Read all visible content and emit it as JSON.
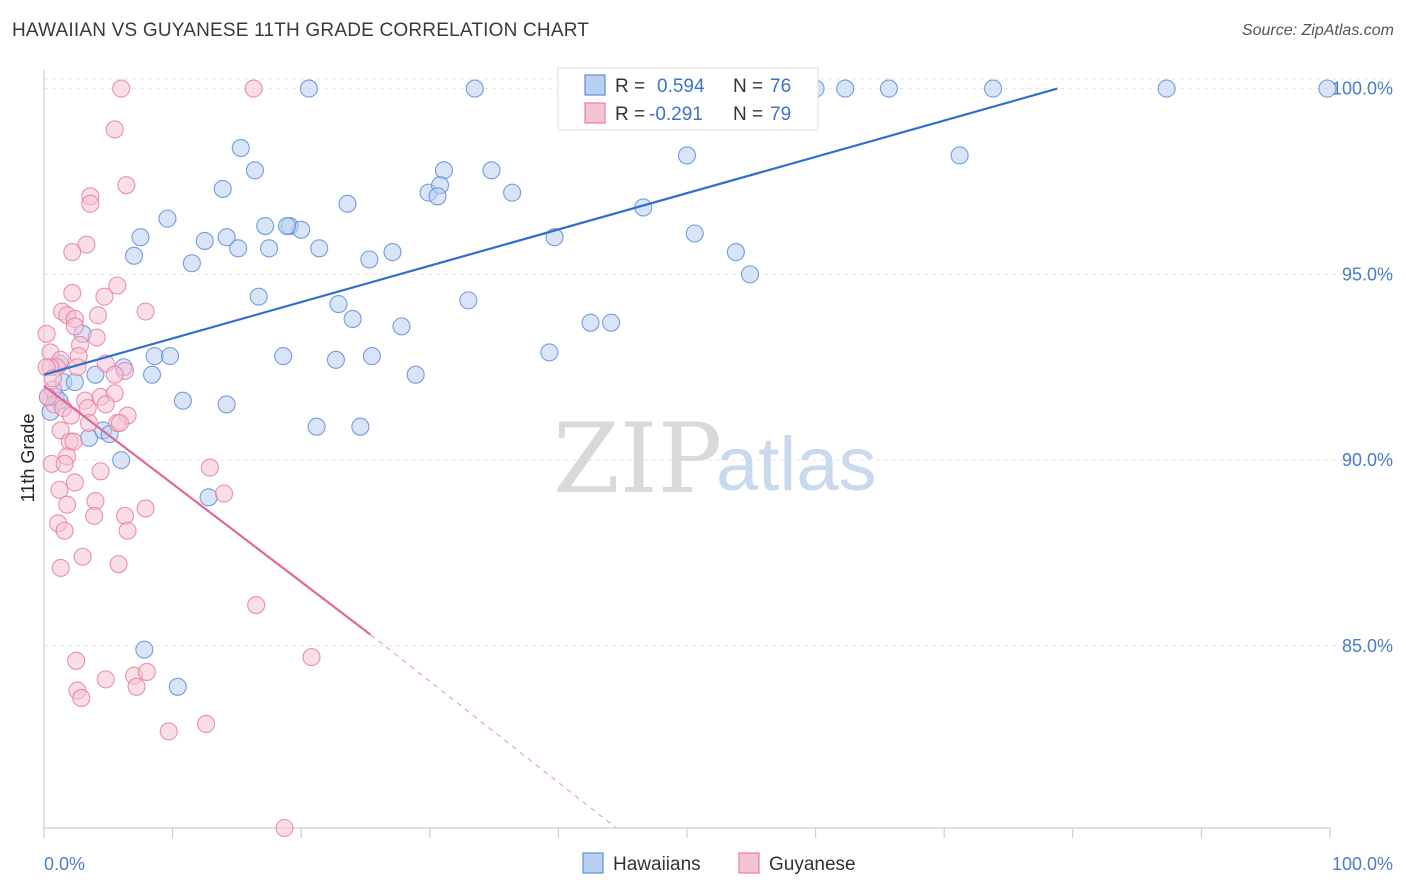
{
  "title": "HAWAIIAN VS GUYANESE 11TH GRADE CORRELATION CHART",
  "source": "Source: ZipAtlas.com",
  "watermark": {
    "zip": "ZIP",
    "atlas": "atlas"
  },
  "legend_stats": [
    {
      "r_label": "R =",
      "r_value": "0.594",
      "n_label": "N =",
      "n_value": "76",
      "color": "#5b8fd9"
    },
    {
      "r_label": "R =",
      "r_value": "-0.291",
      "n_label": "N =",
      "n_value": "79",
      "color": "#e87fa1"
    }
  ],
  "chart_data": {
    "type": "scatter",
    "title": "HAWAIIAN VS GUYANESE 11TH GRADE CORRELATION CHART",
    "xlabel": "",
    "ylabel": "11th Grade",
    "xlim": [
      0,
      100
    ],
    "ylim": [
      80.1,
      100.5
    ],
    "x_tick_labels": [
      "0.0%",
      "100.0%"
    ],
    "y_ticks": [
      {
        "value": 85,
        "label": "85.0%"
      },
      {
        "value": 90,
        "label": "90.0%"
      },
      {
        "value": 95,
        "label": "95.0%"
      },
      {
        "value": 100,
        "label": "100.0%"
      }
    ],
    "grid": true,
    "legend_position": "bottom",
    "series": [
      {
        "name": "Hawaiians",
        "color": "#5b8fd9",
        "fill": "#b9d0f0",
        "trend": {
          "x": [
            0,
            78.8
          ],
          "y": [
            92.3,
            100.0
          ],
          "dashed_extension": false
        },
        "points": [
          [
            20.6,
            100
          ],
          [
            33.5,
            100
          ],
          [
            60.0,
            100
          ],
          [
            62.3,
            100
          ],
          [
            65.7,
            100
          ],
          [
            73.8,
            100
          ],
          [
            87.3,
            100
          ],
          [
            99.8,
            100
          ],
          [
            15.3,
            98.4
          ],
          [
            16.4,
            97.8
          ],
          [
            31.1,
            97.8
          ],
          [
            34.8,
            97.8
          ],
          [
            50.0,
            98.2
          ],
          [
            71.2,
            98.2
          ],
          [
            13.9,
            97.3
          ],
          [
            23.6,
            96.9
          ],
          [
            29.9,
            97.2
          ],
          [
            30.8,
            97.4
          ],
          [
            30.6,
            97.1
          ],
          [
            36.4,
            97.2
          ],
          [
            9.6,
            96.5
          ],
          [
            17.2,
            96.3
          ],
          [
            19.1,
            96.3
          ],
          [
            20.0,
            96.2
          ],
          [
            18.9,
            96.3
          ],
          [
            46.6,
            96.8
          ],
          [
            50.6,
            96.1
          ],
          [
            7.5,
            96.0
          ],
          [
            14.2,
            96.0
          ],
          [
            12.5,
            95.9
          ],
          [
            15.1,
            95.7
          ],
          [
            17.5,
            95.7
          ],
          [
            21.4,
            95.7
          ],
          [
            27.1,
            95.6
          ],
          [
            39.7,
            96.0
          ],
          [
            53.8,
            95.6
          ],
          [
            7.0,
            95.5
          ],
          [
            11.5,
            95.3
          ],
          [
            25.3,
            95.4
          ],
          [
            54.9,
            95.0
          ],
          [
            16.7,
            94.4
          ],
          [
            22.9,
            94.2
          ],
          [
            33.0,
            94.3
          ],
          [
            24.0,
            93.8
          ],
          [
            27.8,
            93.6
          ],
          [
            42.5,
            93.7
          ],
          [
            44.1,
            93.7
          ],
          [
            3.0,
            93.4
          ],
          [
            8.6,
            92.8
          ],
          [
            9.8,
            92.8
          ],
          [
            18.6,
            92.8
          ],
          [
            22.7,
            92.7
          ],
          [
            25.5,
            92.8
          ],
          [
            39.3,
            92.9
          ],
          [
            28.9,
            92.3
          ],
          [
            1.2,
            92.6
          ],
          [
            4.0,
            92.3
          ],
          [
            6.2,
            92.5
          ],
          [
            8.4,
            92.3
          ],
          [
            1.5,
            92.1
          ],
          [
            2.4,
            92.1
          ],
          [
            0.3,
            91.7
          ],
          [
            0.9,
            91.7
          ],
          [
            1.2,
            91.6
          ],
          [
            10.8,
            91.6
          ],
          [
            14.2,
            91.5
          ],
          [
            21.2,
            90.9
          ],
          [
            24.6,
            90.9
          ],
          [
            3.5,
            90.6
          ],
          [
            4.6,
            90.8
          ],
          [
            5.1,
            90.7
          ],
          [
            6.0,
            90.0
          ],
          [
            12.8,
            89.0
          ],
          [
            7.8,
            84.9
          ],
          [
            10.4,
            83.9
          ],
          [
            0.5,
            91.3
          ]
        ]
      },
      {
        "name": "Guyanese",
        "color": "#e87fa1",
        "fill": "#f6c3d4",
        "trend": {
          "x": [
            0,
            25.4
          ],
          "y": [
            92.0,
            85.3
          ],
          "dashed_extension": true,
          "dashed_to": [
            44.5,
            80.1
          ]
        },
        "points": [
          [
            6.0,
            100
          ],
          [
            16.3,
            100
          ],
          [
            5.5,
            98.9
          ],
          [
            6.4,
            97.4
          ],
          [
            3.6,
            97.1
          ],
          [
            3.6,
            96.9
          ],
          [
            3.3,
            95.8
          ],
          [
            2.2,
            95.6
          ],
          [
            5.7,
            94.7
          ],
          [
            4.7,
            94.4
          ],
          [
            2.2,
            94.5
          ],
          [
            7.9,
            94.0
          ],
          [
            1.4,
            94.0
          ],
          [
            1.8,
            93.9
          ],
          [
            2.4,
            93.8
          ],
          [
            2.4,
            93.6
          ],
          [
            4.2,
            93.9
          ],
          [
            0.2,
            93.4
          ],
          [
            4.1,
            93.3
          ],
          [
            2.8,
            93.1
          ],
          [
            0.5,
            92.9
          ],
          [
            1.3,
            92.7
          ],
          [
            2.7,
            92.8
          ],
          [
            4.8,
            92.6
          ],
          [
            1.0,
            92.5
          ],
          [
            0.5,
            92.5
          ],
          [
            0.2,
            92.5
          ],
          [
            2.6,
            92.5
          ],
          [
            6.3,
            92.4
          ],
          [
            5.5,
            92.3
          ],
          [
            0.7,
            91.9
          ],
          [
            3.2,
            91.6
          ],
          [
            4.4,
            91.7
          ],
          [
            5.5,
            91.8
          ],
          [
            0.8,
            91.5
          ],
          [
            1.5,
            91.4
          ],
          [
            3.4,
            91.4
          ],
          [
            4.8,
            91.5
          ],
          [
            6.5,
            91.2
          ],
          [
            3.5,
            91.0
          ],
          [
            5.7,
            91.0
          ],
          [
            5.9,
            91.0
          ],
          [
            1.3,
            90.8
          ],
          [
            2.0,
            90.5
          ],
          [
            2.3,
            90.5
          ],
          [
            1.8,
            90.1
          ],
          [
            0.6,
            89.9
          ],
          [
            1.6,
            89.9
          ],
          [
            4.4,
            89.7
          ],
          [
            12.9,
            89.8
          ],
          [
            2.4,
            89.4
          ],
          [
            1.2,
            89.2
          ],
          [
            14.0,
            89.1
          ],
          [
            4.0,
            88.9
          ],
          [
            1.8,
            88.8
          ],
          [
            7.9,
            88.7
          ],
          [
            3.9,
            88.5
          ],
          [
            6.3,
            88.5
          ],
          [
            1.1,
            88.3
          ],
          [
            1.6,
            88.1
          ],
          [
            6.5,
            88.1
          ],
          [
            3.0,
            87.4
          ],
          [
            5.8,
            87.2
          ],
          [
            1.3,
            87.1
          ],
          [
            16.5,
            86.1
          ],
          [
            2.5,
            84.6
          ],
          [
            20.8,
            84.7
          ],
          [
            4.8,
            84.1
          ],
          [
            7.0,
            84.2
          ],
          [
            8.0,
            84.3
          ],
          [
            2.6,
            83.8
          ],
          [
            7.2,
            83.9
          ],
          [
            2.9,
            83.6
          ],
          [
            9.7,
            82.7
          ],
          [
            12.6,
            82.9
          ],
          [
            18.7,
            80.1
          ],
          [
            0.3,
            91.7
          ],
          [
            0.7,
            92.2
          ],
          [
            2.1,
            91.2
          ]
        ]
      }
    ]
  }
}
